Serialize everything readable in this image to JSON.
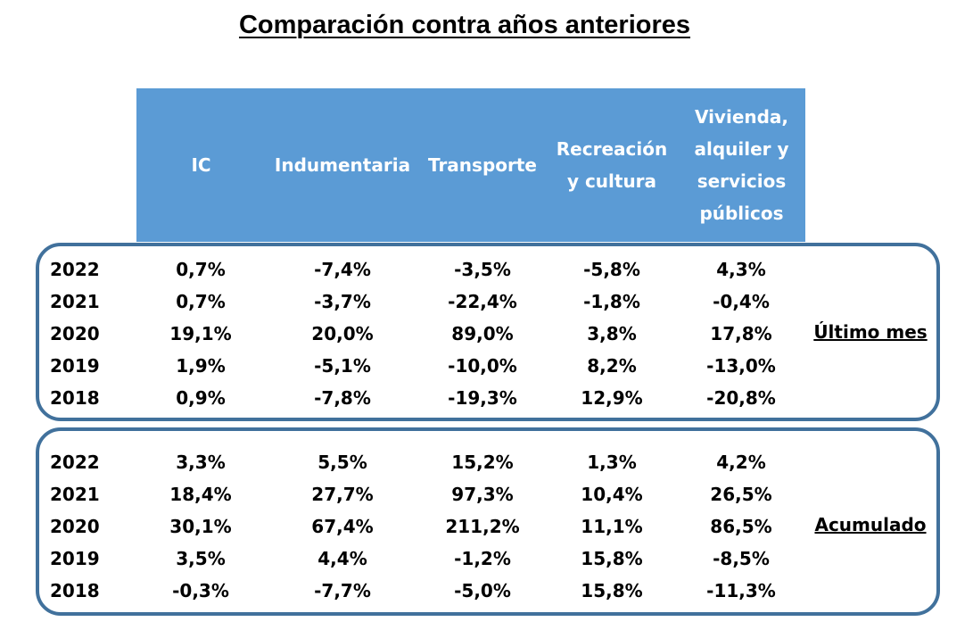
{
  "title": "Comparación contra años anteriores",
  "header_color": "#5b9bd5",
  "box_border_color": "#41719c",
  "columns": [
    "IC",
    "Indumentaria",
    "Transporte",
    "Recreación\ny cultura",
    "Vivienda,\nalquiler y\nservicios\npúblicos"
  ],
  "sections": [
    {
      "label": "Último mes",
      "rows": [
        {
          "year": "2022",
          "values": [
            "0,7%",
            "-7,4%",
            "-3,5%",
            "-5,8%",
            "4,3%"
          ]
        },
        {
          "year": "2021",
          "values": [
            "0,7%",
            "-3,7%",
            "-22,4%",
            "-1,8%",
            "-0,4%"
          ]
        },
        {
          "year": "2020",
          "values": [
            "19,1%",
            "20,0%",
            "89,0%",
            "3,8%",
            "17,8%"
          ]
        },
        {
          "year": "2019",
          "values": [
            "1,9%",
            "-5,1%",
            "-10,0%",
            "8,2%",
            "-13,0%"
          ]
        },
        {
          "year": "2018",
          "values": [
            "0,9%",
            "-7,8%",
            "-19,3%",
            "12,9%",
            "-20,8%"
          ]
        }
      ]
    },
    {
      "label": "Acumulado",
      "rows": [
        {
          "year": "2022",
          "values": [
            "3,3%",
            "5,5%",
            "15,2%",
            "1,3%",
            "4,2%"
          ]
        },
        {
          "year": "2021",
          "values": [
            "18,4%",
            "27,7%",
            "97,3%",
            "10,4%",
            "26,5%"
          ]
        },
        {
          "year": "2020",
          "values": [
            "30,1%",
            "67,4%",
            "211,2%",
            "11,1%",
            "86,5%"
          ]
        },
        {
          "year": "2019",
          "values": [
            "3,5%",
            "4,4%",
            "-1,2%",
            "15,8%",
            "-8,5%"
          ]
        },
        {
          "year": "2018",
          "values": [
            "-0,3%",
            "-7,7%",
            "-5,0%",
            "15,8%",
            "-11,3%"
          ]
        }
      ]
    }
  ]
}
